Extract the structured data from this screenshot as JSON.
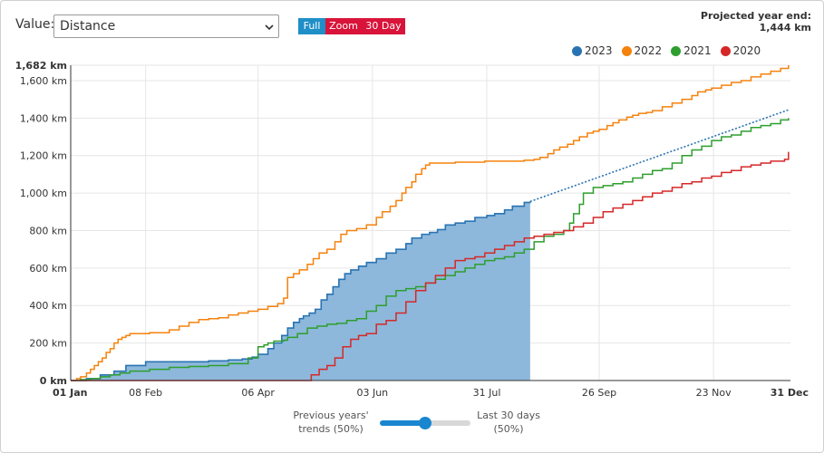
{
  "controls": {
    "value_label": "Value:",
    "value_selected": "Distance",
    "buttons": {
      "full": "Full",
      "zoom": "Zoom",
      "day30": "30 Day"
    }
  },
  "projected": {
    "label": "Projected year end:",
    "value": "1,444 km"
  },
  "colors": {
    "2023": "#2a73b3",
    "2022": "#f5820d",
    "2021": "#2e9e2e",
    "2020": "#d62728",
    "fill2023": "#8db8db"
  },
  "slider": {
    "left_label_line1": "Previous years'",
    "left_label_line2": "trends (50%)",
    "right_label_line1": "Last 30 days",
    "right_label_line2": "(50%)",
    "value": 50
  },
  "chart_data": {
    "type": "line",
    "title": "",
    "xlabel": "",
    "ylabel": "",
    "ylim": [
      0,
      1682
    ],
    "xlim": [
      0,
      365
    ],
    "y_ticks": [
      0,
      200,
      400,
      600,
      800,
      1000,
      1200,
      1400,
      1600,
      1682
    ],
    "y_tick_labels": [
      "0 km",
      "200 km",
      "400 km",
      "600 km",
      "800 km",
      "1,000 km",
      "1,200 km",
      "1,400 km",
      "1,600 km",
      "1,682 km"
    ],
    "x_ticks": [
      0,
      38,
      95,
      153,
      211,
      268,
      326,
      364
    ],
    "x_tick_labels": [
      "01 Jan",
      "08 Feb",
      "06 Apr",
      "03 Jun",
      "31 Jul",
      "26 Sep",
      "23 Nov",
      "31 Dec"
    ],
    "legend": [
      "2023",
      "2022",
      "2021",
      "2020"
    ],
    "series": [
      {
        "name": "2023",
        "style": "filled-step",
        "x": [
          0,
          8,
          15,
          22,
          28,
          38,
          50,
          60,
          70,
          80,
          87,
          92,
          95,
          100,
          103,
          107,
          110,
          113,
          116,
          118,
          121,
          124,
          127,
          130,
          133,
          136,
          139,
          142,
          146,
          150,
          155,
          160,
          165,
          170,
          173,
          178,
          182,
          186,
          190,
          195,
          200,
          205,
          211,
          215,
          220,
          224,
          230,
          233
        ],
        "values": [
          0,
          10,
          30,
          50,
          80,
          100,
          100,
          100,
          105,
          110,
          115,
          125,
          140,
          170,
          200,
          240,
          280,
          310,
          330,
          345,
          360,
          380,
          430,
          460,
          500,
          540,
          570,
          590,
          610,
          630,
          650,
          680,
          700,
          730,
          760,
          780,
          790,
          805,
          830,
          840,
          850,
          870,
          880,
          890,
          910,
          930,
          950,
          955
        ]
      },
      {
        "name": "2023 trend",
        "style": "dotted",
        "x": [
          233,
          364
        ],
        "values": [
          955,
          1444
        ]
      },
      {
        "name": "2022",
        "x": [
          0,
          3,
          5,
          8,
          10,
          12,
          14,
          16,
          18,
          20,
          22,
          24,
          26,
          28,
          30,
          40,
          50,
          55,
          60,
          65,
          70,
          75,
          80,
          85,
          90,
          95,
          100,
          105,
          108,
          110,
          113,
          116,
          120,
          123,
          126,
          130,
          134,
          137,
          140,
          145,
          150,
          155,
          158,
          162,
          165,
          168,
          170,
          173,
          175,
          178,
          180,
          182,
          185,
          188,
          190,
          195,
          200,
          210,
          220,
          230,
          235,
          238,
          242,
          245,
          248,
          252,
          255,
          258,
          262,
          265,
          268,
          272,
          275,
          278,
          282,
          285,
          288,
          292,
          295,
          300,
          305,
          310,
          315,
          318,
          322,
          325,
          330,
          335,
          340,
          345,
          350,
          355,
          360,
          364
        ],
        "values": [
          0,
          10,
          20,
          40,
          60,
          80,
          100,
          120,
          150,
          170,
          200,
          220,
          230,
          240,
          250,
          255,
          270,
          290,
          310,
          325,
          330,
          335,
          350,
          360,
          370,
          380,
          395,
          410,
          440,
          550,
          570,
          590,
          620,
          650,
          680,
          700,
          740,
          780,
          800,
          810,
          830,
          870,
          900,
          930,
          960,
          1000,
          1030,
          1060,
          1100,
          1130,
          1150,
          1160,
          1160,
          1160,
          1160,
          1165,
          1165,
          1170,
          1170,
          1175,
          1180,
          1190,
          1210,
          1230,
          1245,
          1260,
          1280,
          1300,
          1320,
          1330,
          1340,
          1360,
          1375,
          1390,
          1405,
          1415,
          1425,
          1430,
          1440,
          1460,
          1480,
          1500,
          1520,
          1540,
          1550,
          1560,
          1575,
          1590,
          1600,
          1620,
          1635,
          1650,
          1665,
          1682
        ]
      },
      {
        "name": "2021",
        "x": [
          0,
          5,
          10,
          15,
          20,
          25,
          30,
          40,
          50,
          60,
          70,
          80,
          90,
          95,
          98,
          100,
          103,
          108,
          110,
          115,
          120,
          125,
          130,
          135,
          140,
          145,
          150,
          155,
          160,
          165,
          170,
          175,
          180,
          185,
          190,
          195,
          200,
          205,
          210,
          215,
          220,
          225,
          230,
          235,
          240,
          245,
          250,
          253,
          255,
          258,
          260,
          265,
          270,
          275,
          280,
          285,
          290,
          295,
          300,
          305,
          310,
          315,
          320,
          325,
          330,
          335,
          340,
          345,
          350,
          355,
          360,
          364
        ],
        "values": [
          0,
          5,
          10,
          20,
          30,
          40,
          50,
          60,
          70,
          75,
          80,
          90,
          120,
          180,
          190,
          200,
          210,
          215,
          230,
          250,
          280,
          290,
          300,
          305,
          320,
          330,
          370,
          400,
          450,
          480,
          490,
          500,
          520,
          540,
          560,
          580,
          600,
          620,
          640,
          650,
          660,
          680,
          700,
          740,
          770,
          780,
          800,
          840,
          890,
          940,
          1000,
          1030,
          1040,
          1050,
          1060,
          1080,
          1100,
          1120,
          1130,
          1160,
          1200,
          1230,
          1250,
          1280,
          1300,
          1310,
          1330,
          1350,
          1360,
          1370,
          1390,
          1400
        ]
      },
      {
        "name": "2020",
        "x": [
          0,
          20,
          40,
          60,
          80,
          100,
          110,
          118,
          122,
          126,
          130,
          134,
          138,
          142,
          146,
          150,
          155,
          160,
          165,
          170,
          175,
          180,
          185,
          190,
          195,
          200,
          205,
          210,
          215,
          220,
          225,
          230,
          235,
          240,
          245,
          250,
          255,
          260,
          265,
          270,
          275,
          280,
          285,
          290,
          295,
          300,
          305,
          310,
          315,
          320,
          325,
          330,
          335,
          340,
          345,
          350,
          355,
          360,
          362,
          364
        ],
        "values": [
          0,
          0,
          0,
          0,
          0,
          0,
          0,
          0,
          30,
          60,
          80,
          120,
          180,
          220,
          240,
          250,
          300,
          320,
          360,
          420,
          480,
          520,
          560,
          600,
          640,
          650,
          660,
          680,
          700,
          720,
          740,
          760,
          770,
          780,
          790,
          800,
          820,
          840,
          870,
          900,
          920,
          940,
          960,
          980,
          1000,
          1010,
          1030,
          1050,
          1060,
          1080,
          1090,
          1110,
          1120,
          1140,
          1150,
          1160,
          1170,
          1170,
          1180,
          1220
        ]
      }
    ]
  }
}
